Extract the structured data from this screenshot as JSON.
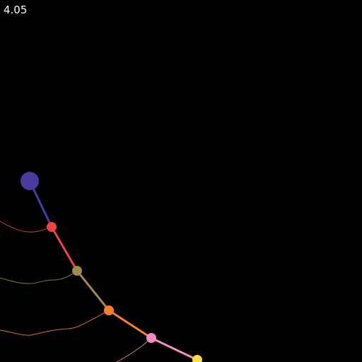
{
  "simulation": {
    "time_readout": "4.05",
    "background_color": "#000000",
    "text_color": "#ffffff",
    "pendulum": {
      "segments": [
        {
          "name": "segment-1",
          "color": "#4b3a9e"
        },
        {
          "name": "segment-2",
          "color": "#ef4444"
        },
        {
          "name": "segment-3",
          "color": "#9e8a4e"
        },
        {
          "name": "segment-4",
          "color": "#f97f2e"
        },
        {
          "name": "segment-5",
          "color": "#f48cc4"
        }
      ],
      "bobs": [
        {
          "name": "pivot-bob",
          "color": "#4b3a9e"
        },
        {
          "name": "bob-1",
          "color": "#ef4444"
        },
        {
          "name": "bob-2",
          "color": "#9e8a4e"
        },
        {
          "name": "bob-3",
          "color": "#f97f2e"
        },
        {
          "name": "bob-4",
          "color": "#f48cc4"
        },
        {
          "name": "bob-5",
          "color": "#fde047"
        }
      ],
      "trails": [
        {
          "name": "trail-bob-1",
          "color": "#ef4444"
        },
        {
          "name": "trail-bob-2",
          "color": "#9e8a4e"
        },
        {
          "name": "trail-bob-3",
          "color": "#f97f2e"
        },
        {
          "name": "trail-bob-4",
          "color": "#f48cc4"
        }
      ]
    }
  }
}
